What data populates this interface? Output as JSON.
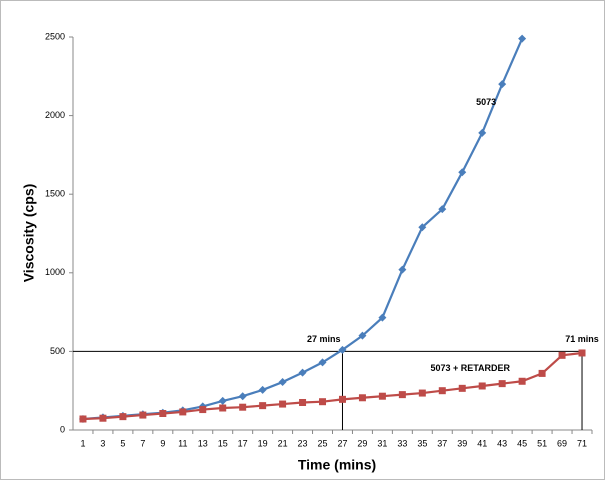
{
  "chart_data": {
    "type": "line",
    "x_label": "Time (mins)",
    "y_label": "Viscosity (cps)",
    "categories": [
      1,
      3,
      5,
      7,
      9,
      11,
      13,
      15,
      17,
      19,
      21,
      23,
      25,
      27,
      29,
      31,
      33,
      35,
      37,
      39,
      41,
      43,
      45,
      51,
      69,
      71
    ],
    "series": [
      {
        "name": "5073",
        "color": "#4a7ebb",
        "marker": "diamond",
        "values": [
          70,
          80,
          90,
          100,
          110,
          125,
          150,
          185,
          215,
          255,
          305,
          365,
          430,
          510,
          600,
          715,
          1020,
          1290,
          1405,
          1640,
          1890,
          2200,
          2490,
          null,
          null,
          null
        ]
      },
      {
        "name": "5073 + RETARDER",
        "color": "#be4b48",
        "marker": "square",
        "values": [
          70,
          75,
          85,
          95,
          105,
          115,
          130,
          140,
          145,
          155,
          165,
          175,
          180,
          195,
          205,
          215,
          225,
          235,
          250,
          265,
          280,
          295,
          310,
          360,
          475,
          490
        ]
      }
    ],
    "annotations": [
      {
        "text": "27 mins",
        "x": 27,
        "y": 500
      },
      {
        "text": "71 mins",
        "x": 71,
        "y": 500
      }
    ],
    "ylim": [
      0,
      2500
    ],
    "yticks": [
      0,
      500,
      1000,
      1500,
      2000,
      2500
    ],
    "grid": false
  }
}
